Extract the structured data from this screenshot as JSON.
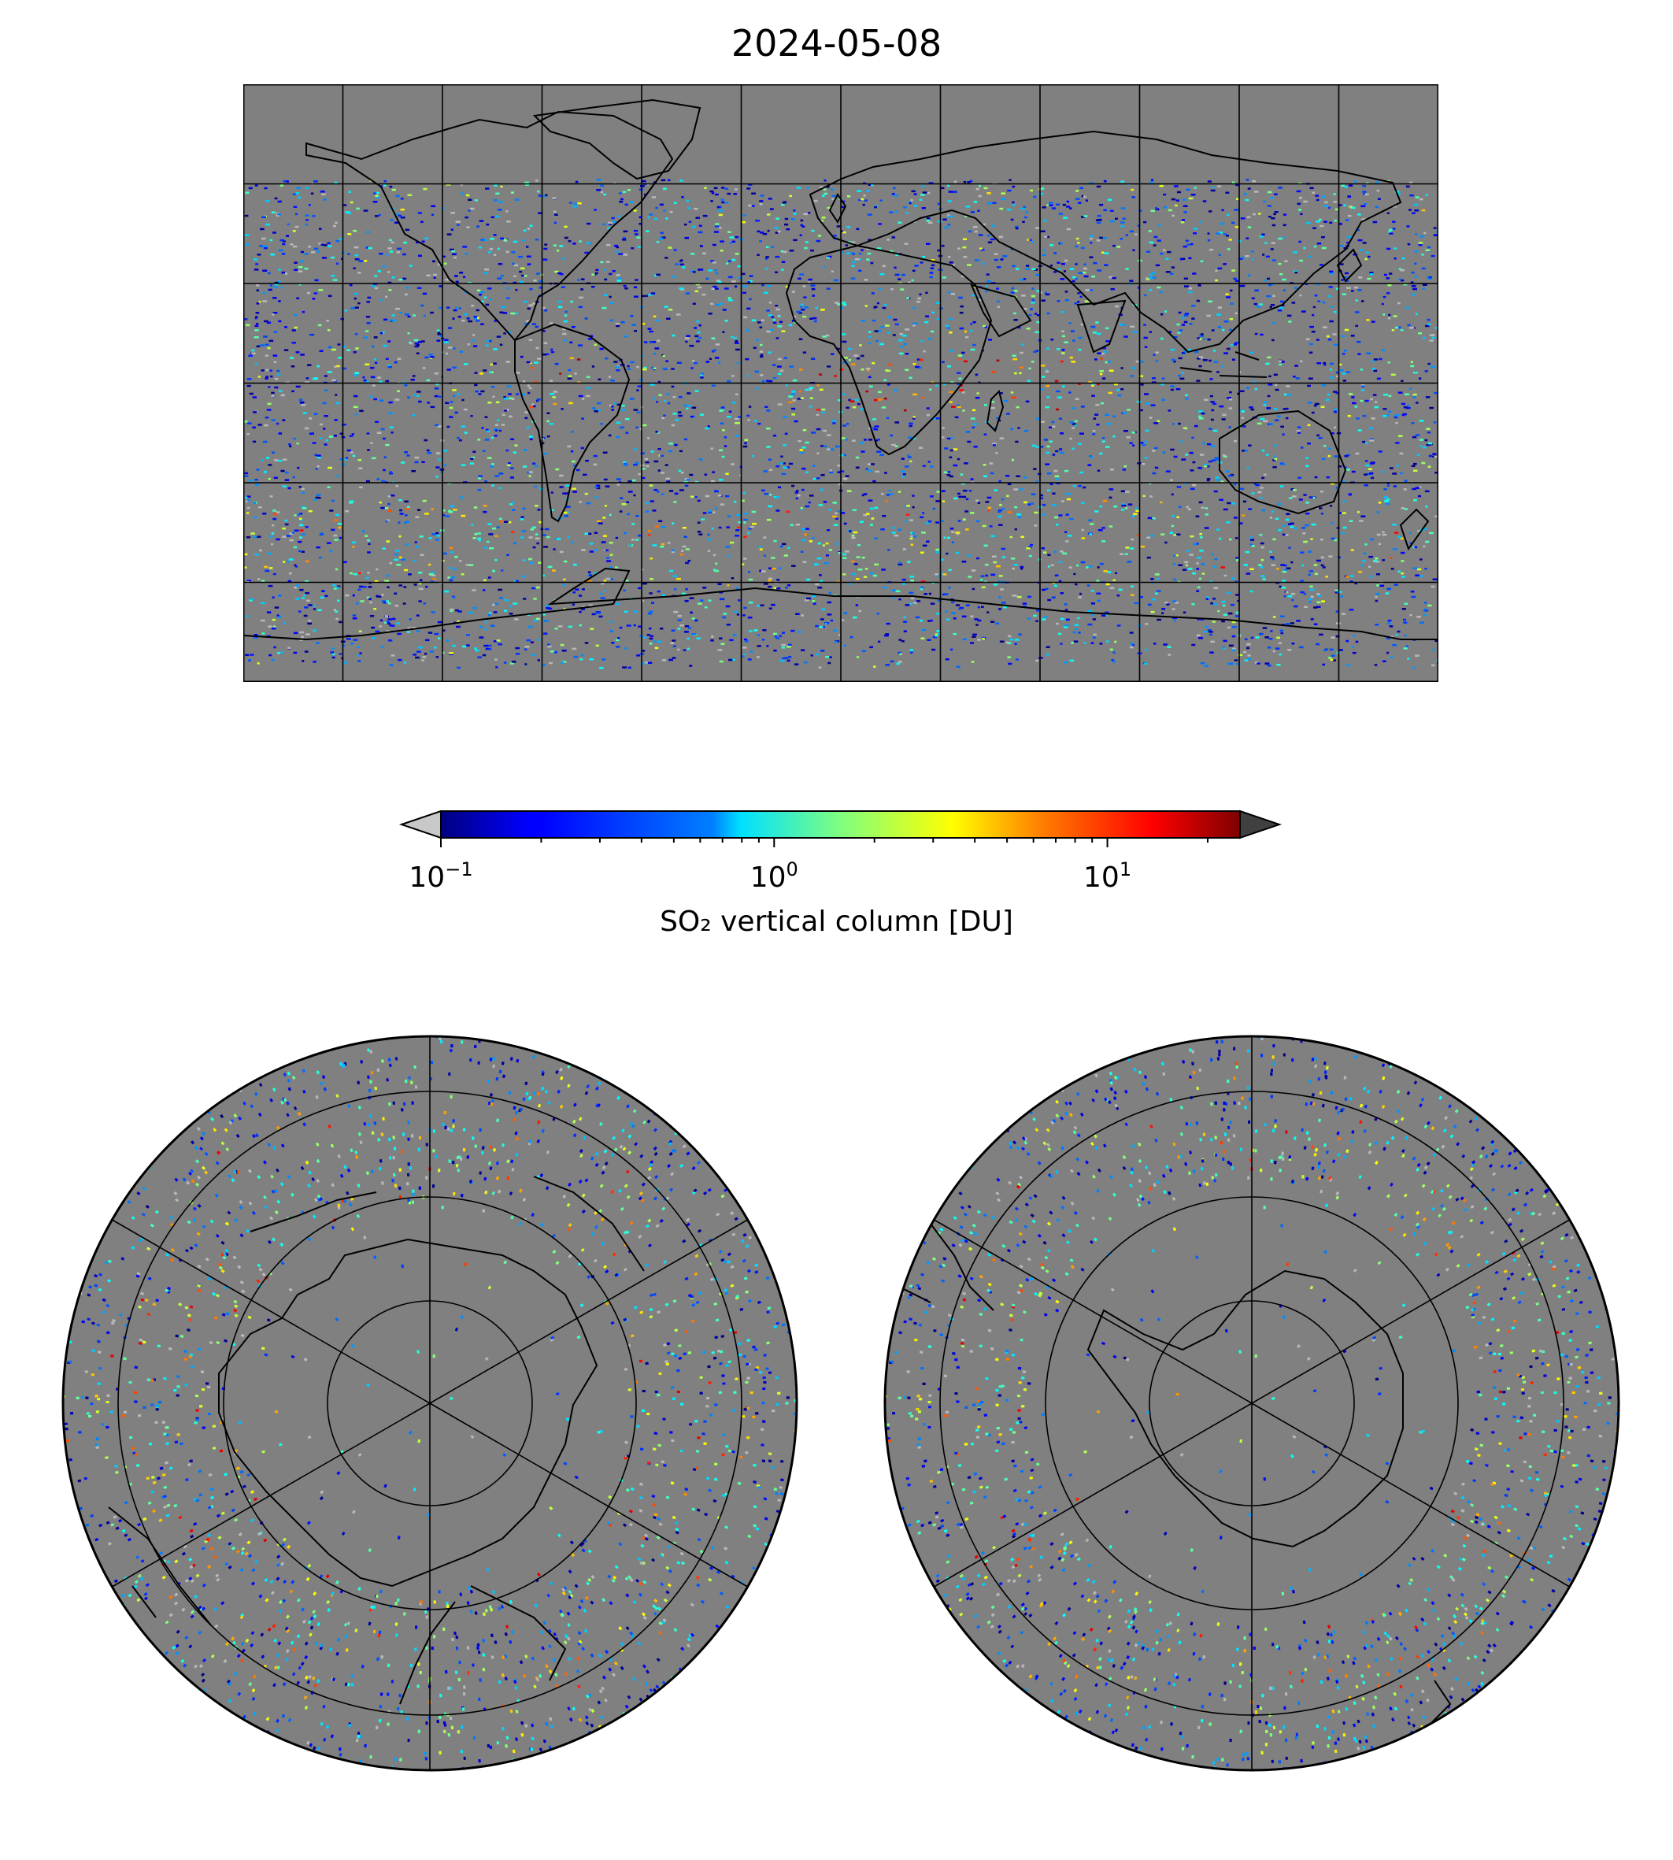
{
  "title": "2024-05-08",
  "colorbar": {
    "label": "SO₂ vertical column [DU]",
    "scale": "log",
    "min": 0.1,
    "max": 25,
    "ticks": [
      {
        "value": 0.1,
        "base": "10",
        "exp": "−1"
      },
      {
        "value": 1,
        "base": "10",
        "exp": "0"
      },
      {
        "value": 10,
        "base": "10",
        "exp": "1"
      }
    ],
    "colormap": "jet",
    "extend": "both",
    "under_color": "#c8c8c8",
    "over_color": "#404040"
  },
  "colors": {
    "background_no_data": "#808080",
    "coastline": "#000000",
    "grid": "#000000"
  },
  "maps": {
    "world": {
      "projection": "PlateCarree",
      "grid_lon_step": 30,
      "grid_lat_step": 30
    },
    "north_polar": {
      "projection": "North Polar Stereographic"
    },
    "south_polar": {
      "projection": "South Polar Stereographic"
    }
  }
}
